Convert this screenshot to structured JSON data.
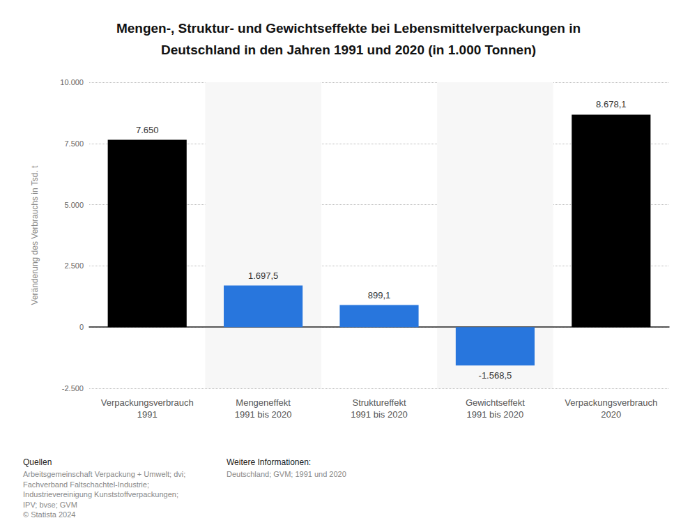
{
  "chart_data": {
    "type": "bar",
    "title": "Mengen-, Struktur- und Gewichtseffekte bei Lebensmittelverpackungen in\nDeutschland in den Jahren 1991 und 2020 (in 1.000 Tonnen)",
    "y_label": "Veränderung des Verbrauchs in Tsd. t",
    "categories": [
      "Verpackungsverbrauch\n1991",
      "Mengeneffekt\n1991 bis 2020",
      "Struktureffekt\n1991 bis 2020",
      "Gewichtseffekt\n1991 bis 2020",
      "Verpackungsverbrauch\n2020"
    ],
    "values": [
      7650,
      1697.5,
      899.1,
      -1568.5,
      8678.1
    ],
    "value_labels": [
      "7.650",
      "1.697,5",
      "899,1",
      "-1.568,5",
      "8.678,1"
    ],
    "colors": [
      "#000000",
      "#2876dd",
      "#2876dd",
      "#2876dd",
      "#000000"
    ],
    "ylim": [
      -2500,
      10000
    ],
    "yticks": [
      {
        "value": -2500,
        "label": "-2.500"
      },
      0,
      {
        "value": 2500,
        "label": "2.500"
      },
      {
        "value": 5000,
        "label": "5.000"
      },
      {
        "value": 7500,
        "label": "7.500"
      },
      {
        "value": 10000,
        "label": "10.000"
      }
    ],
    "grid": true,
    "data_labels": true,
    "annotations": [
      {
        "heading": "Quellen",
        "lines": [
          "Arbeitsgemeinschaft Verpackung + Umwelt; dvi;",
          "Fachverband Faltschachtel-Industrie;",
          "Industrievereinigung Kunststoffverpackungen;",
          "IPV; bvse; GVM",
          "© Statista 2024"
        ]
      },
      {
        "heading": "Weitere Informationen:",
        "lines": [
          "Deutschland; GVM; 1991 und 2020"
        ]
      }
    ]
  }
}
